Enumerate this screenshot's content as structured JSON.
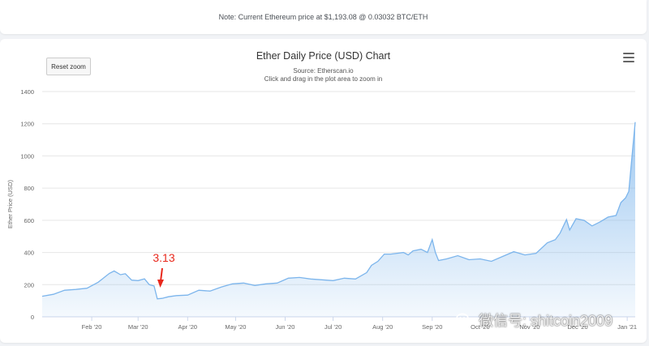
{
  "note": {
    "text": "Note: Current Ethereum price at $1,193.08 @ 0.03032 BTC/ETH"
  },
  "chart": {
    "title": "Ether Daily Price (USD) Chart",
    "subtitle_source": "Source: Etherscan.io",
    "subtitle_hint": "Click and drag in the plot area to zoom in",
    "reset_zoom_label": "Reset zoom",
    "menu_icon": "hamburger-menu-icon"
  },
  "annotation": {
    "text": "3.13",
    "color": "#e8281c"
  },
  "watermark": {
    "text": "微信号: shitcoin2009",
    "icon": "wechat-icon"
  },
  "chart_data": {
    "type": "area",
    "title": "Ether Daily Price (USD) Chart",
    "xlabel": "",
    "ylabel": "Ether Price (USD)",
    "ylim": [
      0,
      1400
    ],
    "y_ticks": [
      0,
      200,
      400,
      600,
      800,
      1000,
      1200,
      1400
    ],
    "x_tick_labels": [
      "Feb '20",
      "Mar '20",
      "Apr '20",
      "May '20",
      "Jun '20",
      "Jul '20",
      "Aug '20",
      "Sep '20",
      "Oct '20",
      "Nov '20",
      "Dec '20",
      "Jan '21"
    ],
    "x_tick_dates": [
      "2020-02-01",
      "2020-03-01",
      "2020-04-01",
      "2020-05-01",
      "2020-06-01",
      "2020-07-01",
      "2020-08-01",
      "2020-09-01",
      "2020-10-01",
      "2020-11-01",
      "2020-12-01",
      "2021-01-01"
    ],
    "grid": true,
    "line_color": "#7cb5ec",
    "x": [
      "2020-01-01",
      "2020-01-08",
      "2020-01-15",
      "2020-01-22",
      "2020-01-29",
      "2020-02-05",
      "2020-02-12",
      "2020-02-15",
      "2020-02-19",
      "2020-02-22",
      "2020-02-26",
      "2020-03-01",
      "2020-03-05",
      "2020-03-08",
      "2020-03-11",
      "2020-03-13",
      "2020-03-16",
      "2020-03-20",
      "2020-03-25",
      "2020-04-01",
      "2020-04-08",
      "2020-04-15",
      "2020-04-22",
      "2020-04-29",
      "2020-05-06",
      "2020-05-13",
      "2020-05-20",
      "2020-05-27",
      "2020-06-03",
      "2020-06-10",
      "2020-06-17",
      "2020-06-24",
      "2020-07-01",
      "2020-07-08",
      "2020-07-15",
      "2020-07-22",
      "2020-07-25",
      "2020-07-29",
      "2020-08-02",
      "2020-08-06",
      "2020-08-10",
      "2020-08-14",
      "2020-08-17",
      "2020-08-20",
      "2020-08-25",
      "2020-08-29",
      "2020-09-01",
      "2020-09-03",
      "2020-09-05",
      "2020-09-10",
      "2020-09-17",
      "2020-09-24",
      "2020-10-01",
      "2020-10-08",
      "2020-10-15",
      "2020-10-22",
      "2020-10-29",
      "2020-11-05",
      "2020-11-12",
      "2020-11-17",
      "2020-11-20",
      "2020-11-24",
      "2020-11-26",
      "2020-11-30",
      "2020-12-05",
      "2020-12-10",
      "2020-12-15",
      "2020-12-20",
      "2020-12-25",
      "2020-12-28",
      "2020-12-31",
      "2021-01-02",
      "2021-01-04",
      "2021-01-06"
    ],
    "values": [
      128,
      140,
      165,
      170,
      178,
      215,
      270,
      285,
      262,
      268,
      228,
      225,
      236,
      200,
      192,
      112,
      115,
      125,
      132,
      135,
      165,
      160,
      185,
      205,
      210,
      195,
      205,
      210,
      240,
      245,
      235,
      230,
      225,
      240,
      235,
      275,
      320,
      345,
      390,
      390,
      395,
      400,
      385,
      410,
      420,
      400,
      480,
      400,
      350,
      360,
      380,
      355,
      360,
      345,
      375,
      405,
      385,
      395,
      460,
      480,
      520,
      605,
      540,
      610,
      600,
      565,
      590,
      620,
      630,
      710,
      740,
      780,
      1000,
      1210
    ]
  }
}
